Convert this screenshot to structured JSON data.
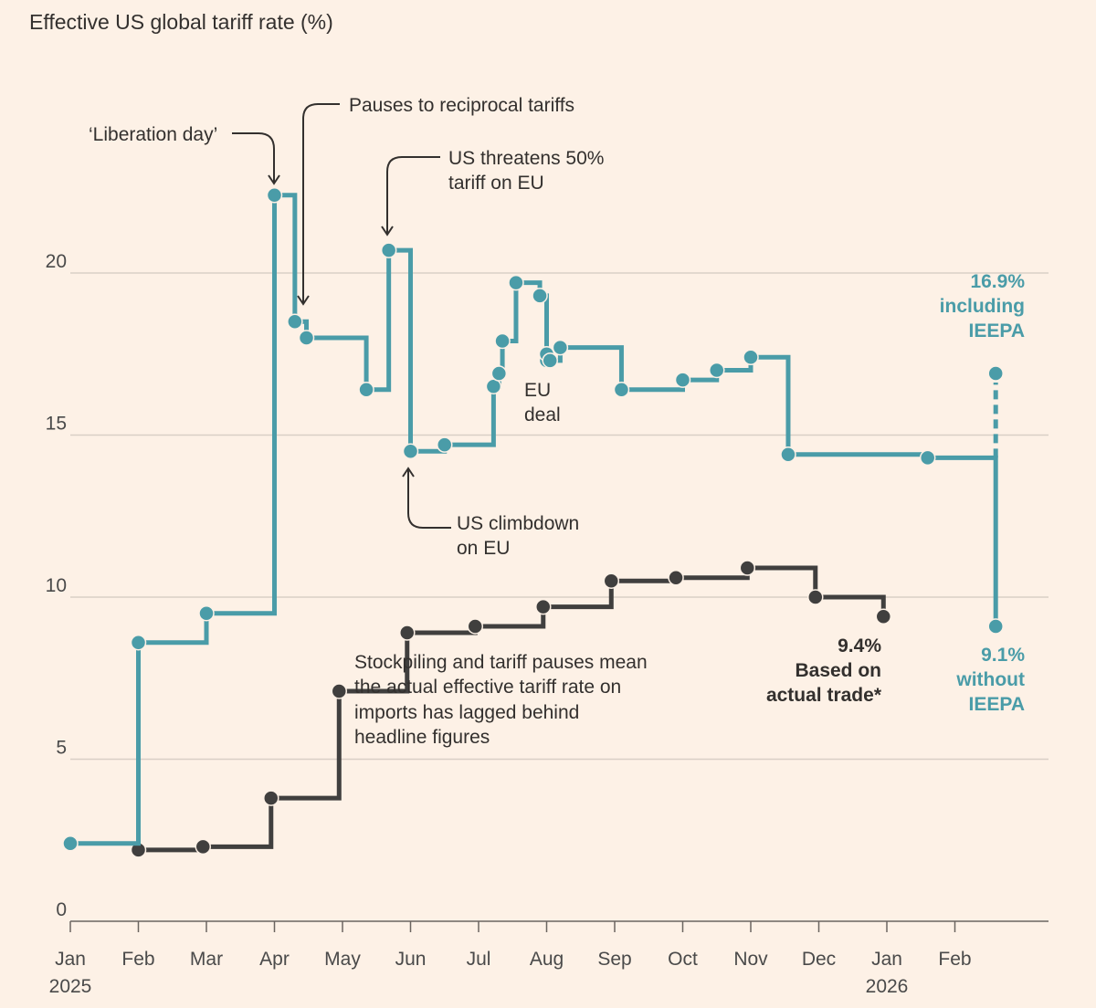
{
  "chart_data": {
    "type": "line",
    "title": "Effective US global tariff rate (%)",
    "ylim": [
      0,
      23
    ],
    "yticks": [
      0,
      5,
      10,
      15,
      20
    ],
    "xticks": [
      {
        "label": "Jan",
        "sub": "2025",
        "x": 0
      },
      {
        "label": "Feb",
        "sub": "",
        "x": 1
      },
      {
        "label": "Mar",
        "sub": "",
        "x": 2
      },
      {
        "label": "Apr",
        "sub": "",
        "x": 3
      },
      {
        "label": "May",
        "sub": "",
        "x": 4
      },
      {
        "label": "Jun",
        "sub": "",
        "x": 5
      },
      {
        "label": "Jul",
        "sub": "",
        "x": 6
      },
      {
        "label": "Aug",
        "sub": "",
        "x": 7
      },
      {
        "label": "Sep",
        "sub": "",
        "x": 8
      },
      {
        "label": "Oct",
        "sub": "",
        "x": 9
      },
      {
        "label": "Nov",
        "sub": "",
        "x": 10
      },
      {
        "label": "Dec",
        "sub": "",
        "x": 11
      },
      {
        "label": "Jan",
        "sub": "2026",
        "x": 12
      },
      {
        "label": "Feb",
        "sub": "",
        "x": 13
      }
    ],
    "colors": {
      "headline": "#4A9CA8",
      "actual": "#403F3E",
      "grid": "#D9CFC6"
    },
    "series": [
      {
        "key": "headline",
        "x": [
          0,
          1,
          2,
          3,
          3.3,
          3.47,
          4.35,
          4.68,
          5.0,
          5.5,
          6.22,
          6.3,
          6.35,
          6.55,
          6.9,
          7.0,
          7.0,
          7.05,
          7.2,
          8.1,
          9.0,
          9.5,
          10.0,
          10.55,
          12.6,
          13.6
        ],
        "y": [
          2.4,
          8.6,
          9.5,
          22.4,
          18.5,
          18.0,
          16.4,
          20.7,
          14.5,
          14.7,
          16.5,
          16.9,
          17.9,
          19.7,
          19.3,
          17.3,
          17.5,
          17.3,
          17.7,
          16.4,
          16.7,
          17.0,
          17.4,
          14.4,
          14.3,
          9.1
        ],
        "end": {
          "x": 13.6,
          "y": 16.9
        }
      },
      {
        "key": "actual",
        "x": [
          1,
          1.95,
          2.95,
          3.95,
          4.95,
          5.95,
          6.95,
          7.95,
          8.9,
          9.95,
          10.95,
          11.95
        ],
        "y": [
          2.2,
          2.3,
          3.8,
          7.1,
          8.9,
          9.1,
          9.7,
          10.5,
          10.6,
          10.9,
          10.0,
          9.4
        ]
      }
    ],
    "annotations": {
      "liberation": "‘Liberation day’",
      "pauses": "Pauses to reciprocal tariffs",
      "threatens": [
        "US threatens 50%",
        "tariff on EU"
      ],
      "eu_deal": [
        "EU",
        "deal"
      ],
      "climbdown": [
        "US climbdown",
        "on EU"
      ],
      "stockpiling": [
        "Stockpiling and tariff pauses mean",
        "the actual effective tariff rate on",
        "imports has lagged behind",
        "headline figures"
      ],
      "actual_end": [
        "9.4%",
        "Based on",
        "actual trade*"
      ],
      "incl_end": [
        "16.9%",
        "including",
        "IEEPA"
      ],
      "excl_end": [
        "9.1%",
        "without",
        "IEEPA"
      ]
    }
  }
}
